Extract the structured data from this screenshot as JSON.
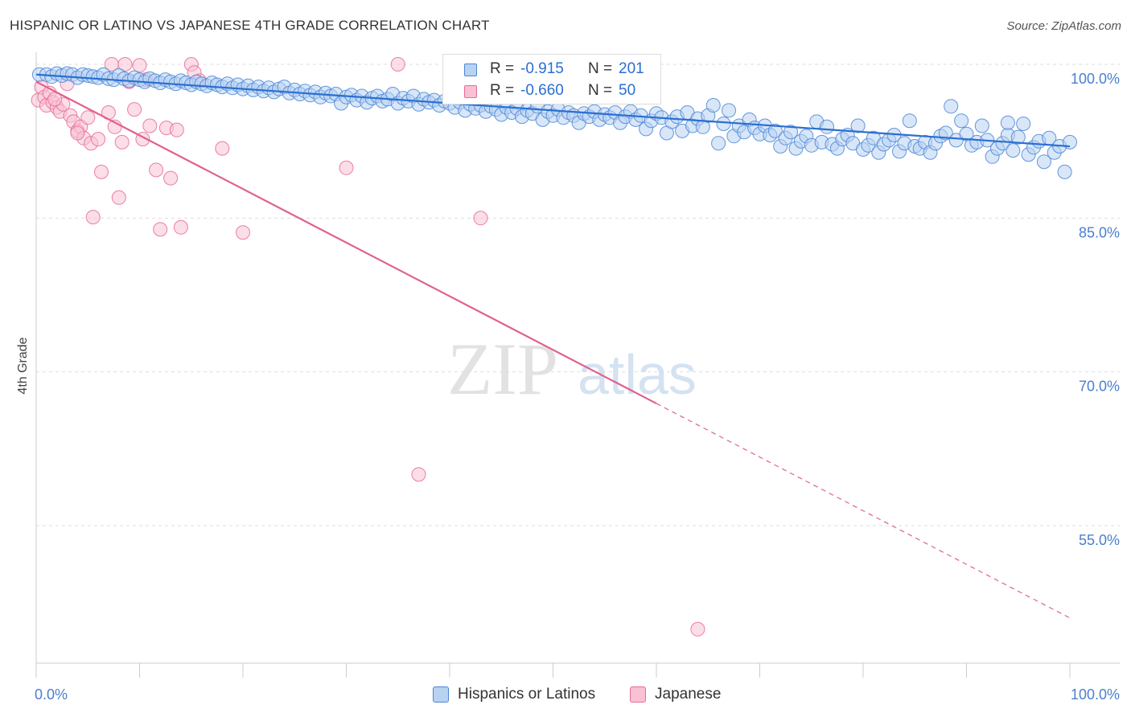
{
  "chart_data": {
    "type": "scatter",
    "title": "HISPANIC OR LATINO VS JAPANESE 4TH GRADE CORRELATION CHART",
    "source": "Source: ZipAtlas.com",
    "watermark": {
      "zip": "ZIP",
      "atlas": "atlas"
    },
    "ylabel": "4th Grade",
    "xlabel": "",
    "xlim": [
      0,
      100
    ],
    "ylim": [
      40,
      101
    ],
    "x_tick_labels": {
      "left": "0.0%",
      "right": "100.0%"
    },
    "y_ticks": [
      {
        "value": 100,
        "label": "100.0%"
      },
      {
        "value": 85,
        "label": "85.0%"
      },
      {
        "value": 70,
        "label": "70.0%"
      },
      {
        "value": 55,
        "label": "55.0%"
      }
    ],
    "grid": true,
    "legend_position": "top-center",
    "colors": {
      "blue": "#4a86d6",
      "blue_fill": "#b8d2f2",
      "blue_line": "#2a6fd0",
      "pink": "#e86b95",
      "pink_fill": "#f8c2d3",
      "pink_line": "#e06090",
      "tick_text": "#4a7fcf",
      "grid": "#dddddd"
    },
    "series": [
      {
        "name": "Hispanics or Latinos",
        "color": "#4a86d6",
        "r_label": "R =",
        "r_value": "-0.915",
        "n_label": "N =",
        "n_value": "201",
        "trend": {
          "x1": 0,
          "y1": 99.0,
          "x2": 100,
          "y2": 92.0,
          "dashed_from": null
        },
        "points": [
          [
            0.3,
            99.0
          ],
          [
            1.0,
            99.0
          ],
          [
            1.5,
            98.8
          ],
          [
            2.0,
            99.1
          ],
          [
            2.5,
            98.9
          ],
          [
            3.0,
            99.1
          ],
          [
            3.5,
            99.0
          ],
          [
            4.0,
            98.7
          ],
          [
            4.5,
            99.0
          ],
          [
            5.0,
            98.9
          ],
          [
            5.5,
            98.8
          ],
          [
            6.0,
            98.7
          ],
          [
            6.5,
            99.0
          ],
          [
            7.0,
            98.6
          ],
          [
            7.5,
            98.5
          ],
          [
            8.0,
            98.9
          ],
          [
            8.5,
            98.6
          ],
          [
            9.0,
            98.4
          ],
          [
            9.5,
            98.7
          ],
          [
            10.0,
            98.5
          ],
          [
            10.5,
            98.3
          ],
          [
            11.0,
            98.6
          ],
          [
            11.5,
            98.4
          ],
          [
            12.0,
            98.2
          ],
          [
            12.5,
            98.5
          ],
          [
            13.0,
            98.3
          ],
          [
            13.5,
            98.1
          ],
          [
            14.0,
            98.4
          ],
          [
            14.5,
            98.2
          ],
          [
            15.0,
            98.0
          ],
          [
            15.5,
            98.3
          ],
          [
            16.0,
            98.1
          ],
          [
            16.5,
            97.9
          ],
          [
            17.0,
            98.2
          ],
          [
            17.5,
            98.0
          ],
          [
            18.0,
            97.8
          ],
          [
            18.5,
            98.1
          ],
          [
            19.0,
            97.7
          ],
          [
            19.5,
            98.0
          ],
          [
            20.0,
            97.6
          ],
          [
            20.5,
            97.9
          ],
          [
            21.0,
            97.5
          ],
          [
            21.5,
            97.8
          ],
          [
            22.0,
            97.4
          ],
          [
            22.5,
            97.7
          ],
          [
            23.0,
            97.3
          ],
          [
            23.5,
            97.6
          ],
          [
            24.0,
            97.8
          ],
          [
            24.5,
            97.2
          ],
          [
            25.0,
            97.5
          ],
          [
            25.5,
            97.1
          ],
          [
            26.0,
            97.4
          ],
          [
            26.5,
            97.0
          ],
          [
            27.0,
            97.3
          ],
          [
            27.5,
            96.8
          ],
          [
            28.0,
            97.2
          ],
          [
            28.5,
            96.9
          ],
          [
            29.0,
            97.1
          ],
          [
            29.5,
            96.2
          ],
          [
            30.0,
            96.8
          ],
          [
            30.5,
            97.0
          ],
          [
            31.0,
            96.5
          ],
          [
            31.5,
            96.9
          ],
          [
            32.0,
            96.3
          ],
          [
            32.5,
            96.7
          ],
          [
            33.0,
            96.9
          ],
          [
            33.5,
            96.4
          ],
          [
            34.0,
            96.6
          ],
          [
            34.5,
            97.1
          ],
          [
            35.0,
            96.2
          ],
          [
            35.5,
            96.7
          ],
          [
            36.0,
            96.4
          ],
          [
            36.5,
            96.9
          ],
          [
            37.0,
            96.1
          ],
          [
            37.5,
            96.6
          ],
          [
            38.0,
            96.3
          ],
          [
            38.5,
            96.5
          ],
          [
            39.0,
            96.0
          ],
          [
            39.5,
            96.4
          ],
          [
            40.0,
            96.2
          ],
          [
            40.5,
            95.8
          ],
          [
            41.0,
            96.3
          ],
          [
            41.5,
            95.5
          ],
          [
            42.0,
            96.1
          ],
          [
            42.5,
            95.7
          ],
          [
            43.0,
            96.0
          ],
          [
            43.5,
            95.4
          ],
          [
            44.0,
            95.9
          ],
          [
            44.5,
            95.6
          ],
          [
            45.0,
            95.1
          ],
          [
            45.5,
            95.8
          ],
          [
            46.0,
            95.3
          ],
          [
            46.5,
            95.7
          ],
          [
            47.0,
            94.9
          ],
          [
            47.5,
            95.5
          ],
          [
            48.0,
            95.2
          ],
          [
            48.5,
            95.9
          ],
          [
            49.0,
            94.6
          ],
          [
            49.5,
            95.4
          ],
          [
            50.0,
            95.0
          ],
          [
            50.5,
            95.6
          ],
          [
            51.0,
            94.8
          ],
          [
            51.5,
            95.3
          ],
          [
            52.0,
            95.0
          ],
          [
            52.5,
            94.3
          ],
          [
            53.0,
            95.2
          ],
          [
            53.5,
            94.9
          ],
          [
            54.0,
            95.4
          ],
          [
            54.5,
            94.6
          ],
          [
            55.0,
            95.1
          ],
          [
            55.5,
            94.8
          ],
          [
            56.0,
            95.3
          ],
          [
            56.5,
            94.3
          ],
          [
            57.0,
            94.9
          ],
          [
            57.5,
            95.4
          ],
          [
            58.0,
            94.6
          ],
          [
            58.5,
            95.0
          ],
          [
            59.0,
            93.7
          ],
          [
            59.5,
            94.5
          ],
          [
            60.0,
            95.2
          ],
          [
            60.5,
            94.8
          ],
          [
            61.0,
            93.3
          ],
          [
            61.5,
            94.4
          ],
          [
            62.0,
            94.9
          ],
          [
            62.5,
            93.5
          ],
          [
            63.0,
            95.3
          ],
          [
            63.5,
            94.0
          ],
          [
            64.0,
            94.7
          ],
          [
            64.5,
            93.9
          ],
          [
            65.0,
            95.0
          ],
          [
            65.5,
            96.0
          ],
          [
            66.0,
            92.3
          ],
          [
            66.5,
            94.2
          ],
          [
            67.0,
            95.5
          ],
          [
            67.5,
            93.0
          ],
          [
            68.0,
            94.0
          ],
          [
            68.5,
            93.4
          ],
          [
            69.0,
            94.6
          ],
          [
            69.5,
            93.8
          ],
          [
            70.0,
            93.2
          ],
          [
            70.5,
            94.0
          ],
          [
            71.0,
            93.1
          ],
          [
            71.5,
            93.5
          ],
          [
            72.0,
            92.0
          ],
          [
            72.5,
            92.8
          ],
          [
            73.0,
            93.4
          ],
          [
            73.5,
            91.8
          ],
          [
            74.0,
            92.5
          ],
          [
            74.5,
            93.0
          ],
          [
            75.0,
            92.1
          ],
          [
            75.5,
            94.4
          ],
          [
            76.0,
            92.4
          ],
          [
            76.5,
            93.9
          ],
          [
            77.0,
            92.2
          ],
          [
            77.5,
            91.8
          ],
          [
            78.0,
            92.7
          ],
          [
            78.5,
            93.1
          ],
          [
            79.0,
            92.3
          ],
          [
            79.5,
            94.0
          ],
          [
            80.0,
            91.7
          ],
          [
            80.5,
            92.1
          ],
          [
            81.0,
            92.8
          ],
          [
            81.5,
            91.4
          ],
          [
            82.0,
            92.2
          ],
          [
            82.5,
            92.6
          ],
          [
            83.0,
            93.1
          ],
          [
            83.5,
            91.5
          ],
          [
            84.0,
            92.3
          ],
          [
            84.5,
            94.5
          ],
          [
            85.0,
            92.0
          ],
          [
            85.5,
            91.8
          ],
          [
            86.0,
            92.4
          ],
          [
            86.5,
            91.4
          ],
          [
            87.0,
            92.3
          ],
          [
            87.5,
            93.0
          ],
          [
            88.0,
            93.3
          ],
          [
            88.5,
            95.9
          ],
          [
            89.0,
            92.6
          ],
          [
            89.5,
            94.5
          ],
          [
            90.0,
            93.2
          ],
          [
            90.5,
            92.1
          ],
          [
            91.0,
            92.4
          ],
          [
            91.5,
            94.0
          ],
          [
            92.0,
            92.6
          ],
          [
            92.5,
            91.0
          ],
          [
            93.0,
            91.8
          ],
          [
            93.5,
            92.3
          ],
          [
            94.0,
            93.1
          ],
          [
            94.5,
            91.6
          ],
          [
            95.0,
            92.9
          ],
          [
            95.5,
            94.2
          ],
          [
            96.0,
            91.2
          ],
          [
            96.5,
            91.9
          ],
          [
            97.0,
            92.5
          ],
          [
            97.5,
            90.5
          ],
          [
            98.0,
            92.8
          ],
          [
            98.5,
            91.4
          ],
          [
            99.0,
            92.0
          ],
          [
            99.5,
            89.5
          ],
          [
            100.0,
            92.4
          ],
          [
            94.0,
            94.3
          ]
        ]
      },
      {
        "name": "Japanese",
        "color": "#e86b95",
        "r_label": "R =",
        "r_value": "-0.660",
        "n_label": "N =",
        "n_value": "50",
        "trend": {
          "x1": 0,
          "y1": 98.3,
          "x2": 100,
          "y2": 46.0,
          "dashed_from": 60
        },
        "points": [
          [
            0.2,
            96.5
          ],
          [
            0.5,
            97.8
          ],
          [
            0.8,
            96.8
          ],
          [
            1.0,
            96.0
          ],
          [
            1.3,
            97.2
          ],
          [
            1.6,
            96.3
          ],
          [
            2.0,
            95.8
          ],
          [
            2.3,
            95.4
          ],
          [
            2.6,
            96.1
          ],
          [
            3.0,
            98.1
          ],
          [
            3.3,
            95.0
          ],
          [
            3.6,
            94.4
          ],
          [
            4.0,
            93.5
          ],
          [
            4.3,
            93.9
          ],
          [
            4.6,
            92.8
          ],
          [
            5.0,
            94.8
          ],
          [
            5.3,
            92.3
          ],
          [
            6.0,
            92.7
          ],
          [
            6.3,
            89.5
          ],
          [
            7.0,
            95.3
          ],
          [
            7.3,
            100.0
          ],
          [
            7.6,
            93.9
          ],
          [
            8.0,
            87.0
          ],
          [
            8.3,
            92.4
          ],
          [
            8.6,
            100.0
          ],
          [
            9.0,
            98.3
          ],
          [
            9.5,
            95.6
          ],
          [
            10.0,
            99.9
          ],
          [
            10.3,
            92.7
          ],
          [
            10.6,
            98.5
          ],
          [
            11.0,
            94.0
          ],
          [
            11.6,
            89.7
          ],
          [
            12.0,
            83.9
          ],
          [
            12.6,
            93.8
          ],
          [
            13.0,
            88.9
          ],
          [
            13.6,
            93.6
          ],
          [
            14.0,
            84.1
          ],
          [
            15.0,
            100.0
          ],
          [
            15.3,
            99.2
          ],
          [
            15.8,
            98.4
          ],
          [
            18.0,
            91.8
          ],
          [
            20.0,
            83.6
          ],
          [
            30.0,
            89.9
          ],
          [
            35.0,
            100.0
          ],
          [
            37.0,
            60.0
          ],
          [
            43.0,
            85.0
          ],
          [
            64.0,
            44.9
          ],
          [
            4.0,
            93.3
          ],
          [
            1.8,
            96.6
          ],
          [
            5.5,
            85.1
          ]
        ]
      }
    ]
  }
}
